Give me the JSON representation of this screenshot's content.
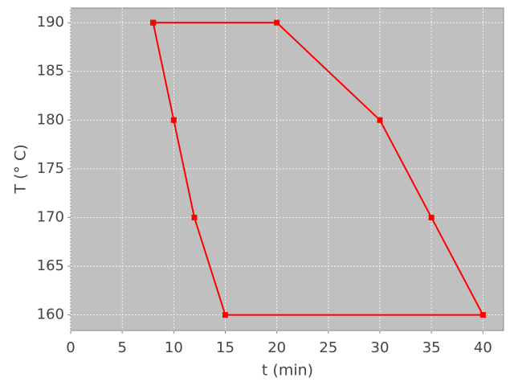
{
  "chart_data": {
    "type": "line",
    "x_label": "t (min)",
    "y_label": "T (° C)",
    "x": [
      8,
      20,
      30,
      35,
      40,
      15,
      12,
      10,
      8
    ],
    "series": [
      {
        "color": "#ff0000",
        "values": [
          190,
          190,
          180,
          170,
          160,
          160,
          170,
          180,
          190
        ]
      }
    ],
    "xlim": [
      0,
      42
    ],
    "ylim": [
      158.4,
      191.5
    ],
    "xticks": [
      0,
      5,
      10,
      15,
      20,
      25,
      30,
      35,
      40
    ],
    "yticks": [
      160,
      165,
      170,
      175,
      180,
      185,
      190
    ],
    "grid": true,
    "background": "#c0c0c0"
  }
}
